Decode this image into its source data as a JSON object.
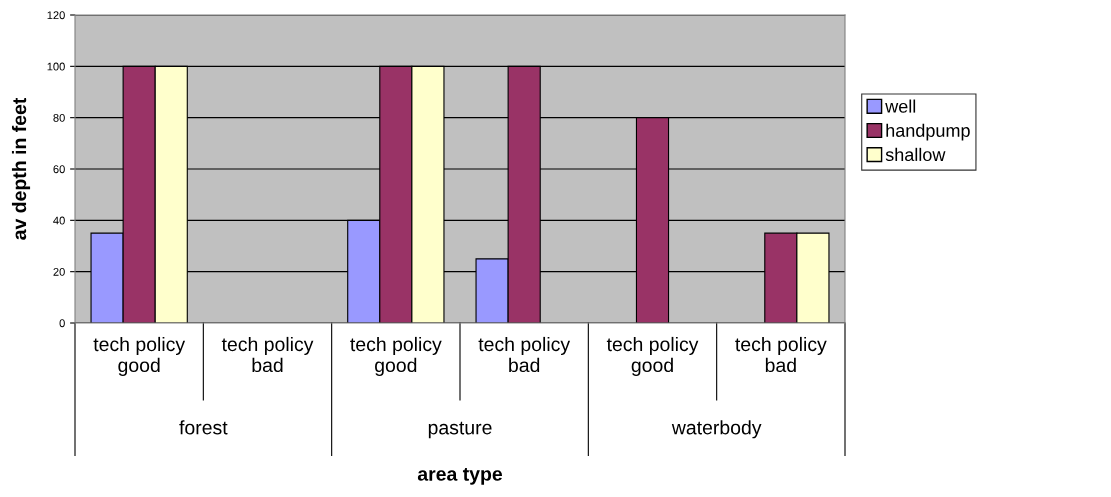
{
  "chart_data": {
    "type": "bar",
    "categories": [
      "tech policy\ngood",
      "tech policy\nbad",
      "tech policy\ngood",
      "tech policy\nbad",
      "tech policy\ngood",
      "tech policy\nbad"
    ],
    "series": [
      {
        "name": "well",
        "color": "#9999ff",
        "values": [
          35,
          null,
          40,
          25,
          null,
          null
        ]
      },
      {
        "name": "handpump",
        "color": "#993366",
        "values": [
          100,
          null,
          100,
          100,
          80,
          35
        ]
      },
      {
        "name": "shallow",
        "color": "#ffffcc",
        "values": [
          100,
          null,
          100,
          null,
          null,
          35
        ]
      }
    ],
    "annotations": [
      "forest",
      "pasture",
      "waterbody"
    ],
    "xlabel": "area type",
    "ylabel": "av depth in feet",
    "ylim": [
      0,
      120
    ],
    "yticks": [
      0,
      20,
      40,
      60,
      80,
      100,
      120
    ],
    "grid": "y",
    "legend": "right"
  }
}
